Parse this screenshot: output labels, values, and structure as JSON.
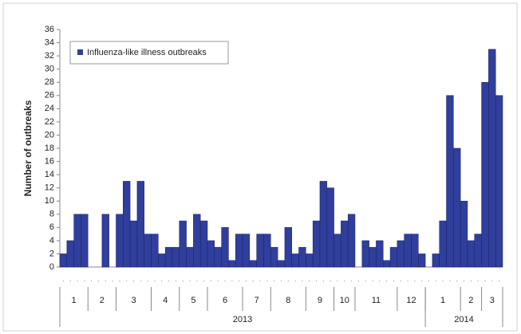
{
  "chart_data": {
    "type": "bar",
    "y_label": "Number of outbreaks",
    "legend": "Influenza-like illness outbreaks",
    "color": "#303e9c",
    "ylim": [
      0,
      36
    ],
    "yticks": [
      0,
      2,
      4,
      6,
      8,
      10,
      12,
      14,
      16,
      18,
      20,
      22,
      24,
      26,
      28,
      30,
      32,
      34,
      36
    ],
    "years": [
      {
        "label": "2013",
        "months": [
          {
            "label": "1",
            "values": [
              2,
              4,
              8,
              8
            ]
          },
          {
            "label": "2",
            "values": [
              0,
              0,
              8,
              0
            ]
          },
          {
            "label": "3",
            "values": [
              8,
              13,
              7,
              13,
              5
            ]
          },
          {
            "label": "4",
            "values": [
              5,
              2,
              3,
              3
            ]
          },
          {
            "label": "5",
            "values": [
              7,
              3,
              8,
              7
            ]
          },
          {
            "label": "6",
            "values": [
              4,
              3,
              6,
              1,
              5
            ]
          },
          {
            "label": "7",
            "values": [
              5,
              1,
              5,
              5
            ]
          },
          {
            "label": "8",
            "values": [
              3,
              1,
              6,
              2,
              3
            ]
          },
          {
            "label": "9",
            "values": [
              2,
              7,
              13,
              12
            ]
          },
          {
            "label": "10",
            "values": [
              5,
              7,
              8
            ]
          },
          {
            "label": "11",
            "values": [
              0,
              4,
              3,
              4,
              1,
              3
            ]
          },
          {
            "label": "12",
            "values": [
              4,
              5,
              5,
              2
            ]
          }
        ]
      },
      {
        "label": "2014",
        "months": [
          {
            "label": "1",
            "values": [
              0,
              2,
              7,
              26,
              18
            ]
          },
          {
            "label": "2",
            "values": [
              10,
              4,
              5
            ]
          },
          {
            "label": "3",
            "values": [
              28,
              33,
              26
            ]
          }
        ]
      }
    ]
  }
}
